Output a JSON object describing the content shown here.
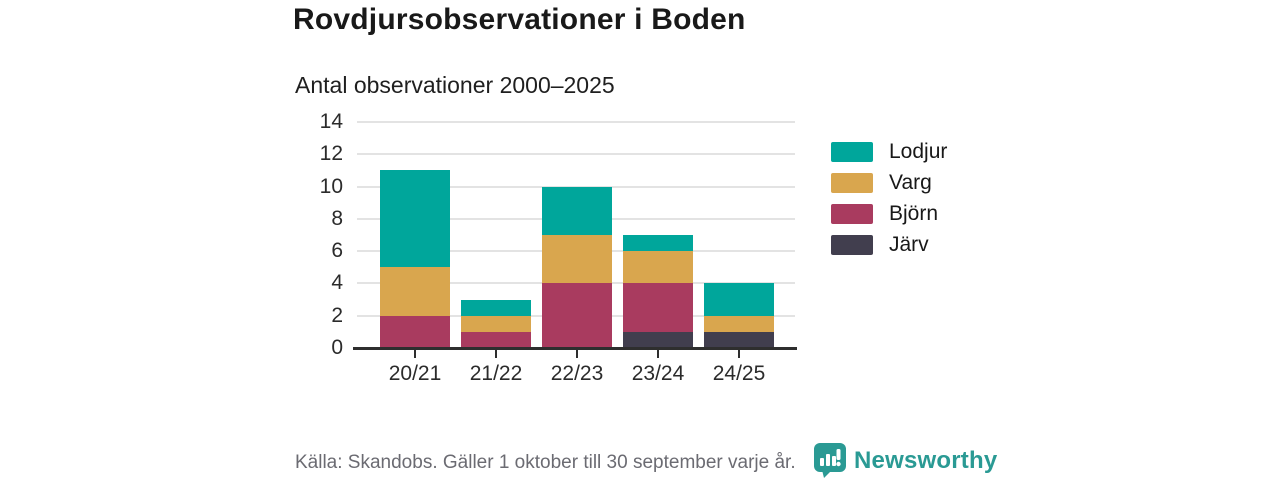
{
  "header": {
    "title": "Rovdjursobservationer i Boden",
    "subtitle": "Antal observationer 2000–2025"
  },
  "chart_data": {
    "type": "bar",
    "stacked": true,
    "title": "Rovdjursobservationer i Boden",
    "subtitle": "Antal observationer 2000–2025",
    "categories": [
      "20/21",
      "21/22",
      "22/23",
      "23/24",
      "24/25"
    ],
    "series": [
      {
        "name": "Lodjur",
        "color": "#00a69b",
        "values": [
          6,
          1,
          3,
          1,
          2
        ]
      },
      {
        "name": "Varg",
        "color": "#d9a64e",
        "values": [
          3,
          1,
          3,
          2,
          1
        ]
      },
      {
        "name": "Björn",
        "color": "#a93b5f",
        "values": [
          2,
          1,
          4,
          3,
          0
        ]
      },
      {
        "name": "Järv",
        "color": "#413e4e",
        "values": [
          0,
          0,
          0,
          1,
          1
        ]
      }
    ],
    "totals": [
      11,
      3,
      10,
      7,
      4
    ],
    "stack_order_bottom_to_top": [
      "Järv",
      "Björn",
      "Varg",
      "Lodjur"
    ],
    "xlabel": "",
    "ylabel": "",
    "ylim": [
      0,
      14
    ],
    "yticks": [
      0,
      2,
      4,
      6,
      8,
      10,
      12,
      14
    ],
    "grid": "horizontal",
    "legend_position": "right"
  },
  "footer": {
    "source": "Källa: Skandobs. Gäller 1 oktober till 30 september varje år.",
    "brand": "Newsworthy"
  },
  "colors": {
    "lodjur": "#00a69b",
    "varg": "#d9a64e",
    "bjorn": "#a93b5f",
    "jarv": "#413e4e",
    "gridline": "#e3e3e3",
    "axis": "#2e2e2e",
    "text": "#191919",
    "source_text": "#6b6b72",
    "brand_teal": "#2a9a94"
  }
}
